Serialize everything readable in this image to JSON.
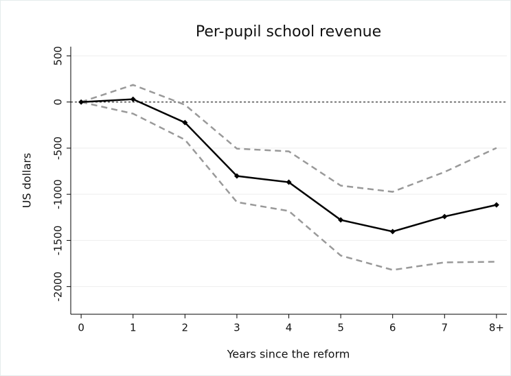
{
  "chart_data": {
    "type": "line",
    "title": "Per-pupil school revenue",
    "xlabel": "Years since the reform",
    "ylabel": "US dollars",
    "categories": [
      "0",
      "1",
      "2",
      "3",
      "4",
      "5",
      "6",
      "7",
      "8+"
    ],
    "series": [
      {
        "color": "#999999",
        "dashed": true,
        "marker": false,
        "values": [
          0,
          186,
          -30,
          -505,
          -535,
          -906,
          -973,
          -758,
          -498
        ]
      },
      {
        "color": "#999999",
        "dashed": true,
        "marker": false,
        "values": [
          0,
          -126,
          -409,
          -1085,
          -1181,
          -1664,
          -1820,
          -1738,
          -1731
        ]
      },
      {
        "color": "#000000",
        "dashed": false,
        "marker": true,
        "values": [
          0,
          30,
          -223,
          -802,
          -869,
          -1278,
          -1404,
          -1241,
          -1115
        ]
      }
    ],
    "reference_line": 0,
    "ylim": [
      -2300,
      600
    ],
    "yticks": [
      -2000,
      -1500,
      -1000,
      -500,
      0,
      500
    ],
    "grid": true
  }
}
